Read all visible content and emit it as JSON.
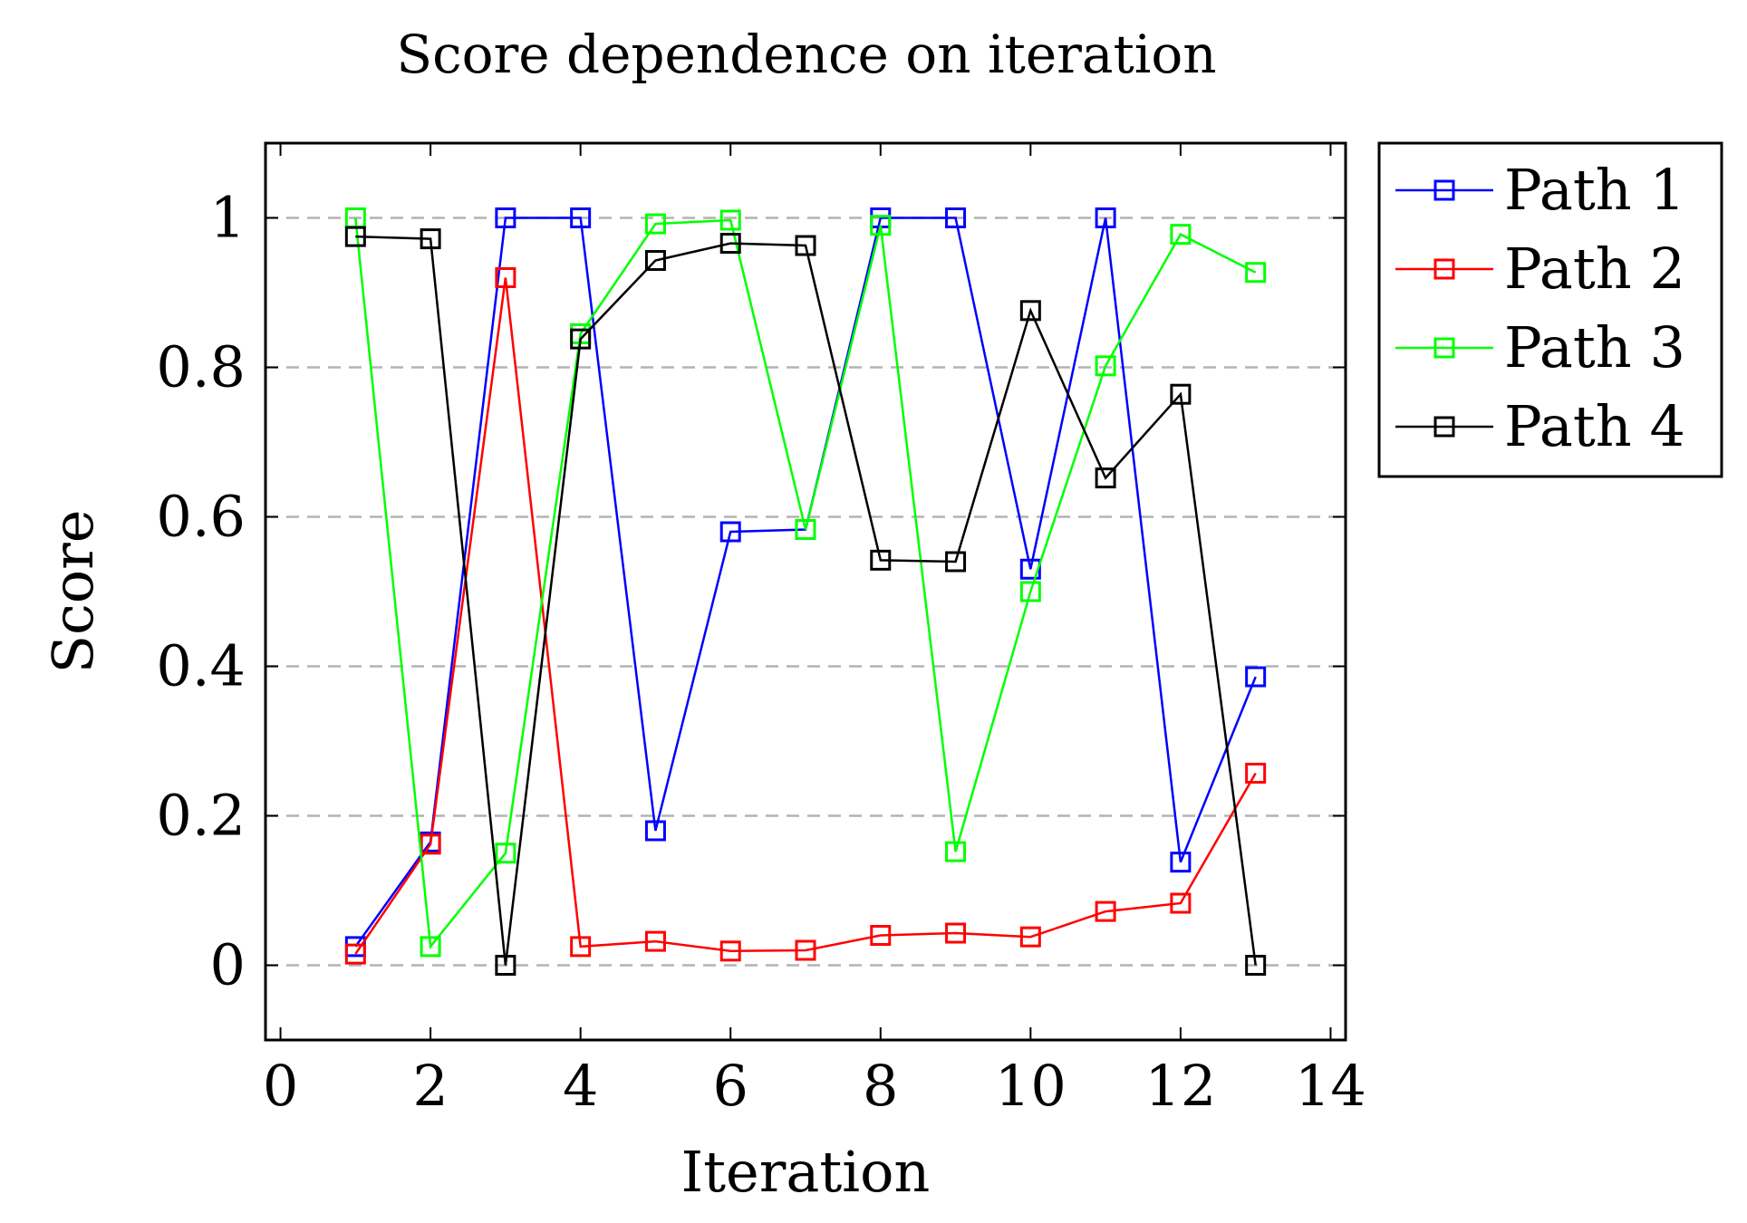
{
  "chart_data": {
    "type": "line",
    "title": "Score dependence on iteration",
    "xlabel": "Iteration",
    "ylabel": "Score",
    "xlim": [
      -0.2,
      14.2
    ],
    "ylim": [
      -0.1,
      1.1
    ],
    "xticks": [
      0,
      2,
      4,
      6,
      8,
      10,
      12,
      14
    ],
    "xtick_labels": [
      "0",
      "2",
      "4",
      "6",
      "8",
      "10",
      "12",
      "14"
    ],
    "yticks": [
      0,
      0.2,
      0.4,
      0.6,
      0.8,
      1
    ],
    "ytick_labels": [
      "0",
      "0.2",
      "0.4",
      "0.6",
      "0.8",
      "1"
    ],
    "grid": "horizontal dashed",
    "legend_position": "outside-top-right",
    "marker": "open-square",
    "x": [
      1,
      2,
      3,
      4,
      5,
      6,
      7,
      8,
      9,
      10,
      11,
      12,
      13
    ],
    "series": [
      {
        "name": "Path 1",
        "color": "#0000ff",
        "values": [
          0.025,
          0.165,
          1.0,
          1.0,
          0.18,
          0.58,
          0.583,
          1.0,
          1.0,
          0.53,
          1.0,
          0.138,
          0.386
        ]
      },
      {
        "name": "Path 2",
        "color": "#ff0000",
        "values": [
          0.015,
          0.162,
          0.92,
          0.025,
          0.032,
          0.019,
          0.02,
          0.04,
          0.043,
          0.038,
          0.072,
          0.083,
          0.257
        ]
      },
      {
        "name": "Path 3",
        "color": "#00ff00",
        "values": [
          1.0,
          0.025,
          0.15,
          0.845,
          0.992,
          0.997,
          0.583,
          0.99,
          0.152,
          0.5,
          0.802,
          0.978,
          0.927
        ]
      },
      {
        "name": "Path 4",
        "color": "#000000",
        "values": [
          0.975,
          0.972,
          0.0,
          0.838,
          0.943,
          0.966,
          0.963,
          0.542,
          0.54,
          0.876,
          0.652,
          0.764,
          0.0
        ]
      }
    ]
  }
}
